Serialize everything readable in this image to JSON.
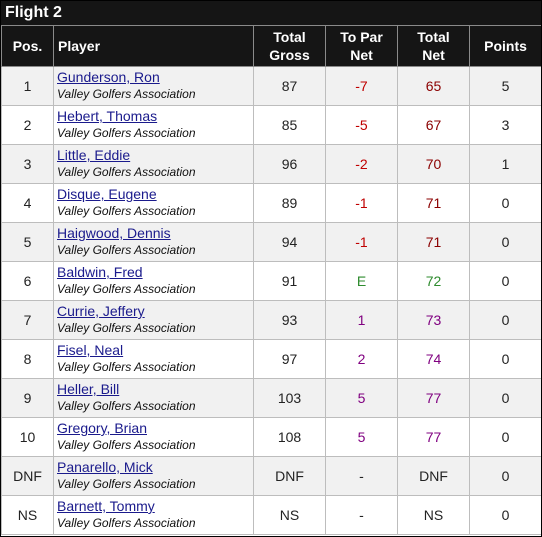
{
  "title": "Flight 2",
  "headers": {
    "pos": "Pos.",
    "player": "Player",
    "total_gross_1": "Total",
    "total_gross_2": "Gross",
    "to_par_1": "To Par",
    "to_par_2": "Net",
    "total_net_1": "Total",
    "total_net_2": "Net",
    "points": "Points"
  },
  "colors": {
    "header_bg": "#151515",
    "under_par": "#c00000",
    "even_par": "#2e8b2e",
    "over_par": "#800080",
    "player_link": "#1a1a8c"
  },
  "rows": [
    {
      "pos": "1",
      "name": "Gunderson, Ron",
      "assoc": "Valley Golfers Association",
      "gross": "87",
      "to_par": "-7",
      "net": "65",
      "points": "5"
    },
    {
      "pos": "2",
      "name": "Hebert, Thomas",
      "assoc": "Valley Golfers Association",
      "gross": "85",
      "to_par": "-5",
      "net": "67",
      "points": "3"
    },
    {
      "pos": "3",
      "name": "Little, Eddie",
      "assoc": "Valley Golfers Association",
      "gross": "96",
      "to_par": "-2",
      "net": "70",
      "points": "1"
    },
    {
      "pos": "4",
      "name": "Disque, Eugene",
      "assoc": "Valley Golfers Association",
      "gross": "89",
      "to_par": "-1",
      "net": "71",
      "points": "0"
    },
    {
      "pos": "5",
      "name": "Haigwood, Dennis",
      "assoc": "Valley Golfers Association",
      "gross": "94",
      "to_par": "-1",
      "net": "71",
      "points": "0"
    },
    {
      "pos": "6",
      "name": "Baldwin, Fred",
      "assoc": "Valley Golfers Association",
      "gross": "91",
      "to_par": "E",
      "net": "72",
      "points": "0"
    },
    {
      "pos": "7",
      "name": "Currie, Jeffery",
      "assoc": "Valley Golfers Association",
      "gross": "93",
      "to_par": "1",
      "net": "73",
      "points": "0"
    },
    {
      "pos": "8",
      "name": "Fisel, Neal",
      "assoc": "Valley Golfers Association",
      "gross": "97",
      "to_par": "2",
      "net": "74",
      "points": "0"
    },
    {
      "pos": "9",
      "name": "Heller, Bill",
      "assoc": "Valley Golfers Association",
      "gross": "103",
      "to_par": "5",
      "net": "77",
      "points": "0"
    },
    {
      "pos": "10",
      "name": "Gregory, Brian",
      "assoc": "Valley Golfers Association",
      "gross": "108",
      "to_par": "5",
      "net": "77",
      "points": "0"
    },
    {
      "pos": "DNF",
      "name": "Panarello, Mick",
      "assoc": "Valley Golfers Association",
      "gross": "DNF",
      "to_par": "-",
      "net": "DNF",
      "points": "0"
    },
    {
      "pos": "NS",
      "name": "Barnett, Tommy",
      "assoc": "Valley Golfers Association",
      "gross": "NS",
      "to_par": "-",
      "net": "NS",
      "points": "0"
    }
  ]
}
